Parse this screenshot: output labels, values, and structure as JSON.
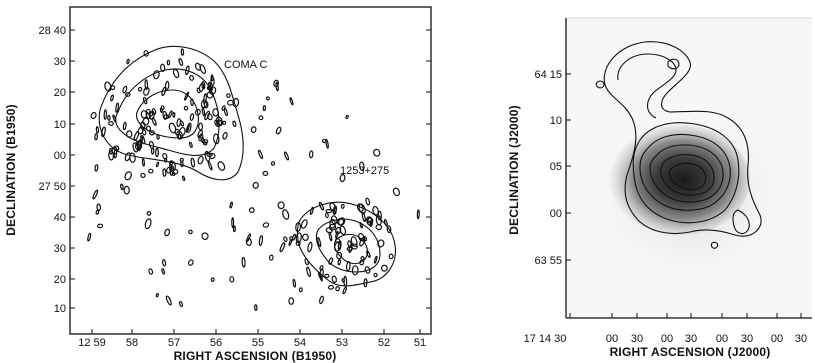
{
  "figure": {
    "left_panel": {
      "annotations": {
        "coma_c": "COMA C",
        "source_1253": "1253+275"
      },
      "xlabel": "RIGHT ASCENSION (B1950)",
      "ylabel": "DECLINATION (B1950)",
      "x_ticks": [
        "12 59",
        "58",
        "57",
        "56",
        "55",
        "54",
        "53",
        "52",
        "51"
      ],
      "y_ticks": [
        "28 40",
        "30",
        "20",
        "10",
        "00",
        "27 50",
        "40",
        "30",
        "20",
        "10"
      ]
    },
    "right_panel": {
      "xlabel": "RIGHT ASCENSION  (J2000)",
      "ylabel": "DECLINATION  (J2000)",
      "x_ticks": [
        "17 14 30",
        "00",
        "30",
        "00",
        "30",
        "00",
        "30",
        "00",
        "30"
      ],
      "y_ticks": [
        "64 15",
        "10",
        "05",
        "00",
        "63 55"
      ]
    }
  }
}
